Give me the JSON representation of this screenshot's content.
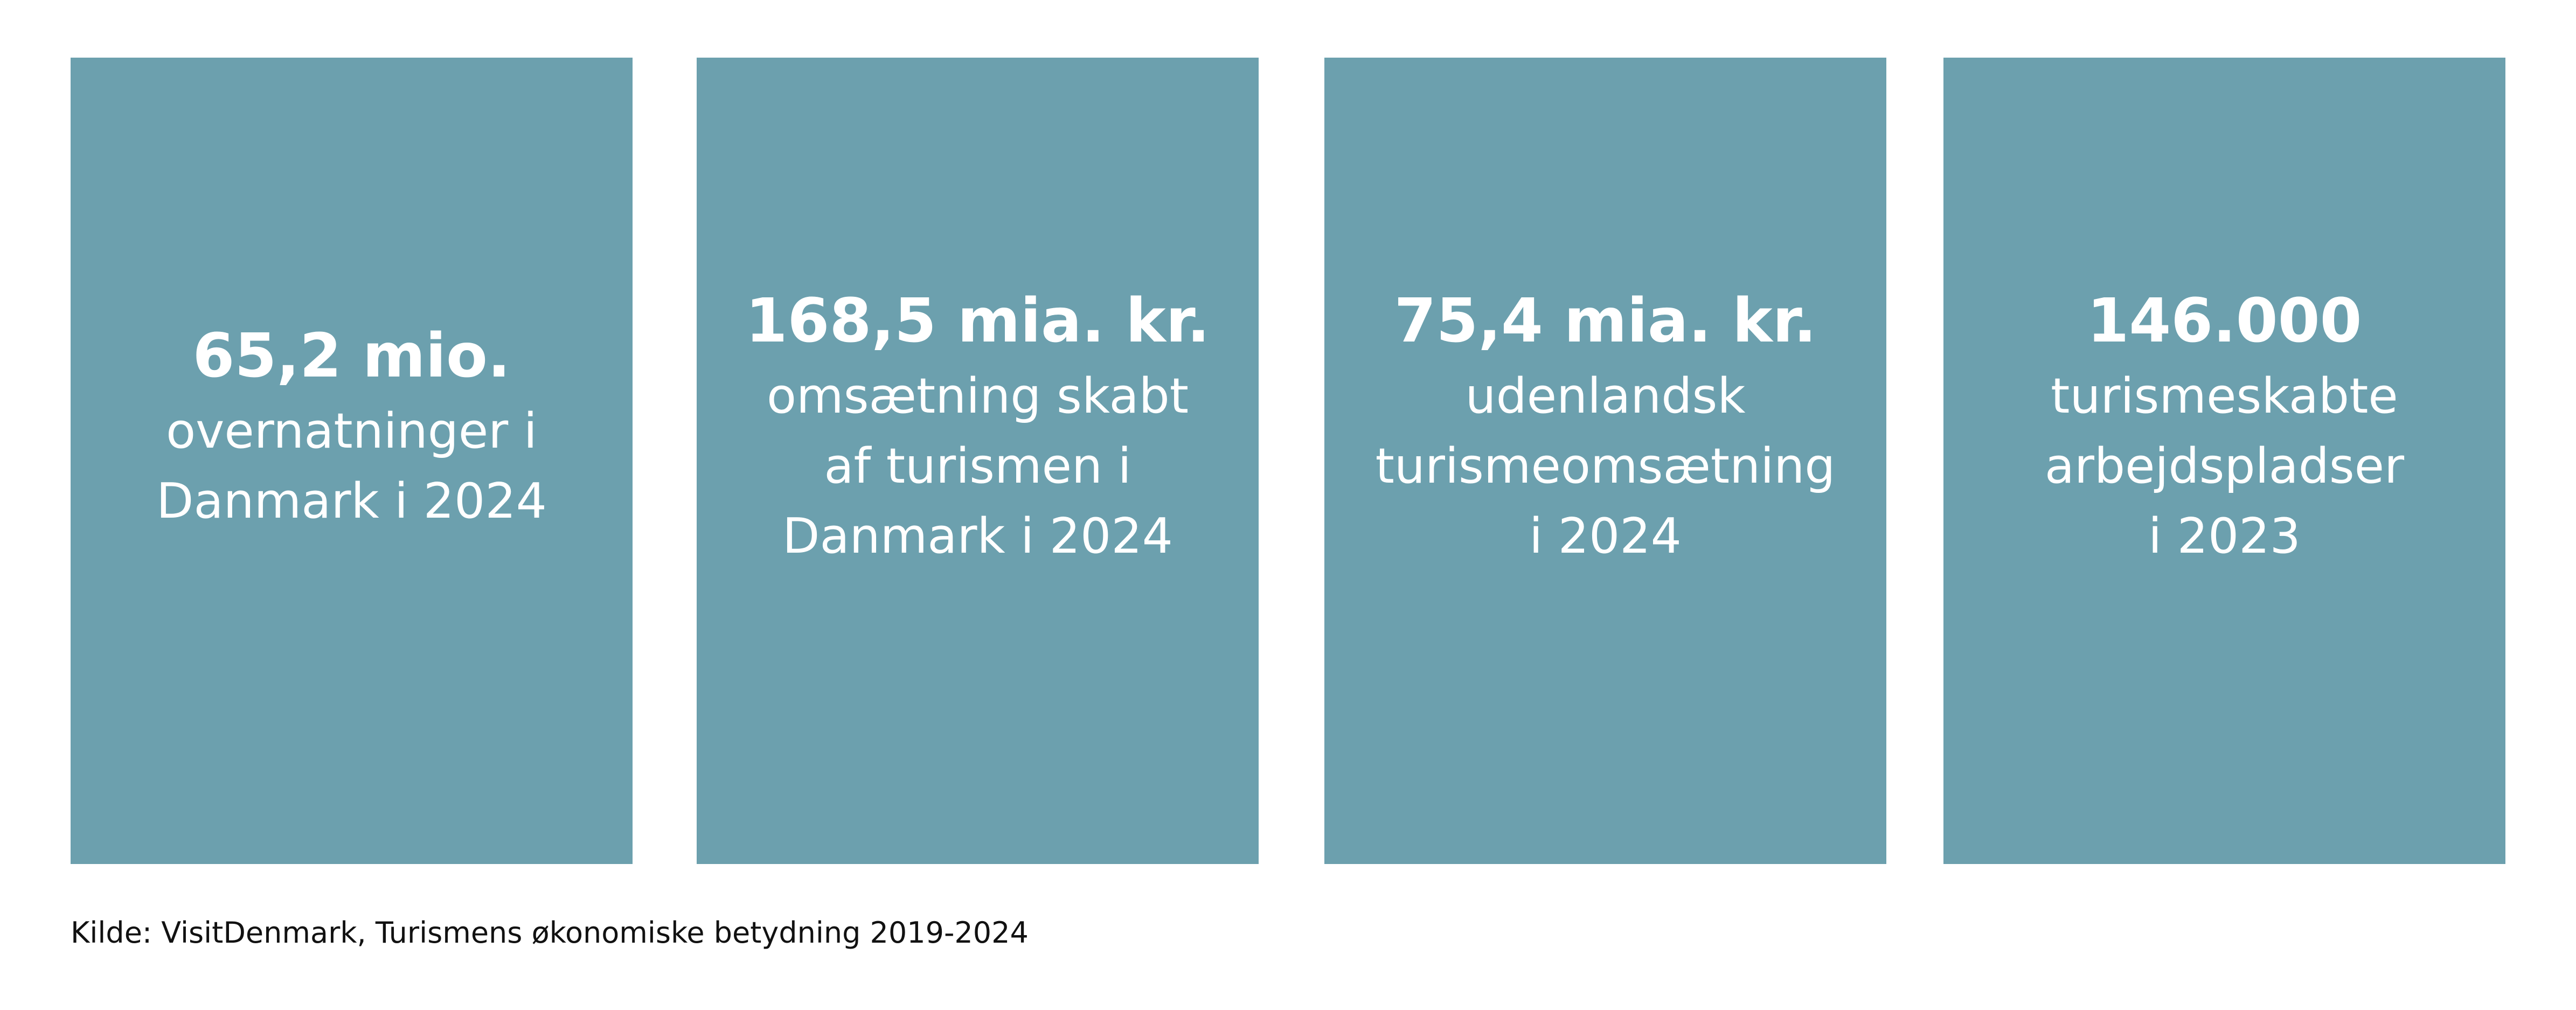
{
  "cards": [
    {
      "number": "65,2 mio.",
      "lines": [
        "overnatninger i",
        "Danmark i 2024"
      ]
    },
    {
      "number": "168,5 mia. kr.",
      "lines": [
        "omsætning skabt",
        "af turismen i",
        "Danmark i 2024"
      ]
    },
    {
      "number": "75,4 mia. kr.",
      "lines": [
        "udenlandsk",
        "turismeomsætning",
        "i 2024"
      ]
    },
    {
      "number": "146.000",
      "lines": [
        "turismeskabte",
        "arbejdspladser",
        "i 2023"
      ]
    }
  ],
  "source": "Kilde: VisitDenmark, Turismens økonomiske betydning 2019-2024"
}
